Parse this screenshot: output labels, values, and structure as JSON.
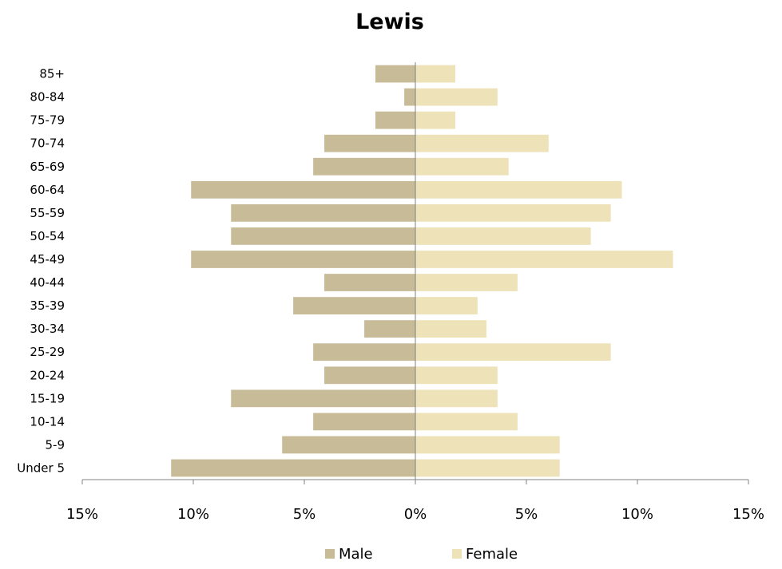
{
  "chart_data": {
    "type": "bar",
    "orientation": "horizontal",
    "title": "Lewis",
    "categories": [
      "Under 5",
      "5-9",
      "10-14",
      "15-19",
      "20-24",
      "25-29",
      "30-34",
      "35-39",
      "40-44",
      "45-49",
      "50-54",
      "55-59",
      "60-64",
      "65-69",
      "70-74",
      "75-79",
      "80-84",
      "85+"
    ],
    "series": [
      {
        "name": "Male",
        "color": "#c8bc98",
        "values": [
          11.0,
          6.0,
          4.6,
          8.3,
          4.1,
          4.6,
          2.3,
          5.5,
          4.1,
          10.1,
          8.3,
          8.3,
          10.1,
          4.6,
          4.1,
          1.8,
          0.5,
          1.8
        ]
      },
      {
        "name": "Female",
        "color": "#ede2b8",
        "values": [
          6.5,
          6.5,
          4.6,
          3.7,
          3.7,
          8.8,
          3.2,
          2.8,
          4.6,
          11.6,
          7.9,
          8.8,
          9.3,
          4.2,
          6.0,
          1.8,
          3.7,
          1.8
        ]
      }
    ],
    "x_ticks": [
      "15%",
      "10%",
      "5%",
      "0%",
      "5%",
      "10%",
      "15%"
    ],
    "xlim": [
      -15,
      15
    ],
    "legend_position": "bottom",
    "grid": false
  }
}
